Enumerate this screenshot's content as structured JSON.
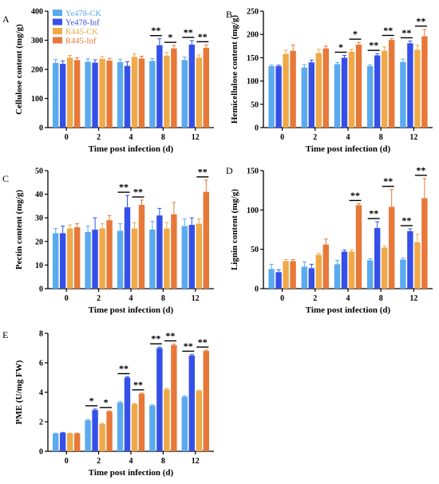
{
  "legend": [
    {
      "name": "Ye478-CK",
      "color": "#5aaaf0"
    },
    {
      "name": "Ye478-Inf",
      "color": "#3550e8"
    },
    {
      "name": "R445-CK",
      "color": "#f0a848"
    },
    {
      "name": "R445-Inf",
      "color": "#e87838"
    }
  ],
  "chart_data": [
    {
      "panel": "A",
      "type": "bar",
      "ylabel": "Cellulose content (mg/g)",
      "xlabel": "Time post infection (d)",
      "categories": [
        "0",
        "2",
        "4",
        "8",
        "12"
      ],
      "ylim": [
        0,
        400
      ],
      "yticks": [
        0,
        100,
        200,
        300,
        400
      ],
      "series": [
        {
          "name": "Ye478-CK",
          "values": [
            222,
            226,
            225,
            229,
            232
          ],
          "errors": [
            12,
            10,
            10,
            8,
            10
          ]
        },
        {
          "name": "Ye478-Inf",
          "values": [
            219,
            223,
            212,
            283,
            285
          ],
          "errors": [
            10,
            10,
            14,
            22,
            14
          ]
        },
        {
          "name": "R445-CK",
          "values": [
            240,
            236,
            243,
            247,
            240
          ],
          "errors": [
            8,
            8,
            10,
            12,
            10
          ]
        },
        {
          "name": "R445-Inf",
          "values": [
            232,
            230,
            237,
            272,
            274
          ],
          "errors": [
            8,
            8,
            8,
            10,
            10
          ]
        }
      ],
      "significance": [
        {
          "category": "8",
          "pair": "Ye478",
          "label": "**"
        },
        {
          "category": "8",
          "pair": "R445",
          "label": "*"
        },
        {
          "category": "12",
          "pair": "Ye478",
          "label": "**"
        },
        {
          "category": "12",
          "pair": "R445",
          "label": "**"
        }
      ]
    },
    {
      "panel": "B",
      "type": "bar",
      "ylabel": "Hemicellulose content (mg/g)",
      "xlabel": "Time post infection (d)",
      "categories": [
        "0",
        "2",
        "4",
        "8",
        "12"
      ],
      "ylim": [
        0,
        250
      ],
      "yticks": [
        0,
        50,
        100,
        150,
        200,
        250
      ],
      "series": [
        {
          "name": "Ye478-CK",
          "values": [
            132,
            129,
            136,
            132,
            141
          ],
          "errors": [
            2,
            6,
            4,
            3,
            6
          ]
        },
        {
          "name": "Ye478-Inf",
          "values": [
            132,
            140,
            150,
            155,
            181
          ],
          "errors": [
            2,
            5,
            5,
            4,
            5
          ]
        },
        {
          "name": "R445-CK",
          "values": [
            158,
            160,
            163,
            165,
            167
          ],
          "errors": [
            8,
            8,
            5,
            8,
            10
          ]
        },
        {
          "name": "R445-Inf",
          "values": [
            165,
            170,
            178,
            188,
            196
          ],
          "errors": [
            12,
            5,
            5,
            3,
            15
          ]
        }
      ],
      "significance": [
        {
          "category": "4",
          "pair": "Ye478",
          "label": "*"
        },
        {
          "category": "4",
          "pair": "R445",
          "label": "*"
        },
        {
          "category": "8",
          "pair": "Ye478",
          "label": "**"
        },
        {
          "category": "8",
          "pair": "R445",
          "label": "**"
        },
        {
          "category": "12",
          "pair": "Ye478",
          "label": "**"
        },
        {
          "category": "12",
          "pair": "R445",
          "label": "**"
        }
      ]
    },
    {
      "panel": "C",
      "type": "bar",
      "ylabel": "Pectin content (mg/g)",
      "xlabel": "Time post infection (d)",
      "categories": [
        "0",
        "2",
        "4",
        "8",
        "12"
      ],
      "ylim": [
        0,
        50
      ],
      "yticks": [
        0,
        10,
        20,
        30,
        40,
        50
      ],
      "series": [
        {
          "name": "Ye478-CK",
          "values": [
            23.5,
            24,
            24.5,
            25,
            26.5
          ],
          "errors": [
            2,
            2.5,
            3,
            3.5,
            3
          ]
        },
        {
          "name": "Ye478-Inf",
          "values": [
            23.5,
            25,
            34.5,
            31,
            27
          ],
          "errors": [
            3,
            5,
            5,
            3,
            3
          ]
        },
        {
          "name": "R445-CK",
          "values": [
            25.5,
            25.5,
            25.5,
            25.5,
            27.5
          ],
          "errors": [
            1.5,
            2,
            2.5,
            2.5,
            2
          ]
        },
        {
          "name": "R445-Inf",
          "values": [
            26,
            29,
            35.5,
            31.5,
            41
          ],
          "errors": [
            1.5,
            2,
            2,
            5,
            5
          ]
        }
      ],
      "significance": [
        {
          "category": "4",
          "pair": "Ye478",
          "label": "**"
        },
        {
          "category": "4",
          "pair": "R445",
          "label": "**"
        },
        {
          "category": "12",
          "pair": "R445",
          "label": "**"
        }
      ]
    },
    {
      "panel": "D",
      "type": "bar",
      "ylabel": "Lignin content (mg/g)",
      "xlabel": "Time post infection (d)",
      "categories": [
        "0",
        "2",
        "4",
        "8",
        "12"
      ],
      "ylim": [
        0,
        150
      ],
      "yticks": [
        0,
        50,
        100,
        150
      ],
      "series": [
        {
          "name": "Ye478-CK",
          "values": [
            25,
            28,
            31,
            36,
            37
          ],
          "errors": [
            6,
            6,
            5,
            2,
            2
          ]
        },
        {
          "name": "Ye478-Inf",
          "values": [
            21,
            26,
            47,
            77,
            73
          ],
          "errors": [
            3,
            5,
            2,
            8,
            3
          ]
        },
        {
          "name": "R445-CK",
          "values": [
            35,
            43,
            47,
            52,
            59
          ],
          "errors": [
            2,
            2,
            2,
            2,
            10
          ]
        },
        {
          "name": "R445-Inf",
          "values": [
            35,
            56,
            106,
            104,
            115
          ],
          "errors": [
            2,
            7,
            2,
            22,
            25
          ]
        }
      ],
      "significance": [
        {
          "category": "4",
          "pair": "R445",
          "label": "**"
        },
        {
          "category": "8",
          "pair": "Ye478",
          "label": "**"
        },
        {
          "category": "8",
          "pair": "R445",
          "label": "**"
        },
        {
          "category": "12",
          "pair": "Ye478",
          "label": "**"
        },
        {
          "category": "12",
          "pair": "R445",
          "label": "**"
        }
      ]
    },
    {
      "panel": "E",
      "type": "bar",
      "ylabel": "PME (U/mg FW)",
      "xlabel": "Time post infection (d)",
      "categories": [
        "0",
        "2",
        "4",
        "8",
        "12"
      ],
      "ylim": [
        0,
        8
      ],
      "yticks": [
        0,
        2,
        4,
        6,
        8
      ],
      "series": [
        {
          "name": "Ye478-CK",
          "values": [
            1.2,
            2.1,
            3.3,
            3.1,
            3.7
          ],
          "errors": [
            0.03,
            0.05,
            0.07,
            0.05,
            0.05
          ]
        },
        {
          "name": "Ye478-Inf",
          "values": [
            1.25,
            2.8,
            5.0,
            7.0,
            6.5
          ],
          "errors": [
            0.03,
            0.07,
            0.05,
            0.07,
            0.07
          ]
        },
        {
          "name": "R445-CK",
          "values": [
            1.2,
            1.85,
            3.2,
            4.2,
            4.1
          ],
          "errors": [
            0.03,
            0.05,
            0.05,
            0.07,
            0.05
          ]
        },
        {
          "name": "R445-Inf",
          "values": [
            1.2,
            2.7,
            3.9,
            7.2,
            6.8
          ],
          "errors": [
            0.03,
            0.05,
            0.05,
            0.07,
            0.05
          ]
        }
      ],
      "significance": [
        {
          "category": "2",
          "pair": "Ye478",
          "label": "*"
        },
        {
          "category": "2",
          "pair": "R445",
          "label": "*"
        },
        {
          "category": "4",
          "pair": "Ye478",
          "label": "**"
        },
        {
          "category": "4",
          "pair": "R445",
          "label": "**"
        },
        {
          "category": "8",
          "pair": "Ye478",
          "label": "**"
        },
        {
          "category": "8",
          "pair": "R445",
          "label": "**"
        },
        {
          "category": "12",
          "pair": "Ye478",
          "label": "**"
        },
        {
          "category": "12",
          "pair": "R445",
          "label": "**"
        }
      ]
    }
  ]
}
